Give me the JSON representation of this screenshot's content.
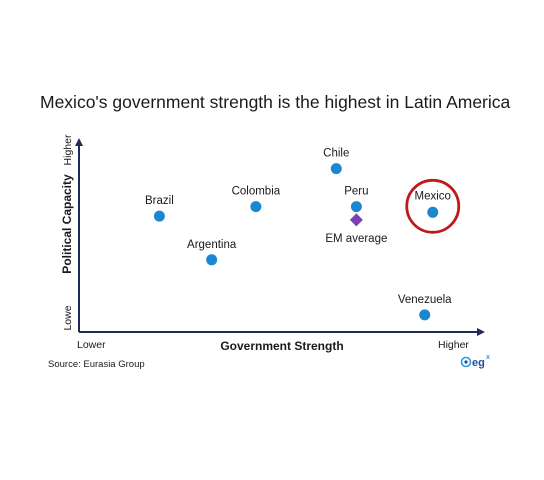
{
  "chart_data": {
    "type": "scatter",
    "title": "Mexico's government strength is the highest in Latin America",
    "xlabel": "Government Strength",
    "ylabel": "Political Capacity",
    "x_low_label": "Lower",
    "x_high_label": "Higher",
    "y_low_label": "Lowe",
    "y_high_label": "Higher",
    "xlim": [
      0,
      10
    ],
    "ylim": [
      0,
      10
    ],
    "grid": false,
    "legend": "none",
    "points": [
      {
        "label": "Brazil",
        "x": 2.0,
        "y": 6.1,
        "marker": "circle",
        "color": "#1b87d0"
      },
      {
        "label": "Argentina",
        "x": 3.3,
        "y": 3.8,
        "marker": "circle",
        "color": "#1b87d0"
      },
      {
        "label": "Colombia",
        "x": 4.4,
        "y": 6.6,
        "marker": "circle",
        "color": "#1b87d0"
      },
      {
        "label": "Chile",
        "x": 6.4,
        "y": 8.6,
        "marker": "circle",
        "color": "#1b87d0"
      },
      {
        "label": "Peru",
        "x": 6.9,
        "y": 6.6,
        "marker": "circle",
        "color": "#1b87d0"
      },
      {
        "label": "EM average",
        "x": 6.9,
        "y": 5.9,
        "marker": "diamond",
        "color": "#7b3fb5"
      },
      {
        "label": "Mexico",
        "x": 8.8,
        "y": 6.3,
        "marker": "circle",
        "color": "#1b87d0",
        "highlight": true
      },
      {
        "label": "Venezuela",
        "x": 8.6,
        "y": 0.9,
        "marker": "circle",
        "color": "#1b87d0"
      }
    ],
    "highlight_color": "#c0191c",
    "axis_color": "#1f2a5a"
  },
  "source": "Source: Eurasia Group",
  "logo": {
    "text": "eg",
    "sup": "x"
  }
}
